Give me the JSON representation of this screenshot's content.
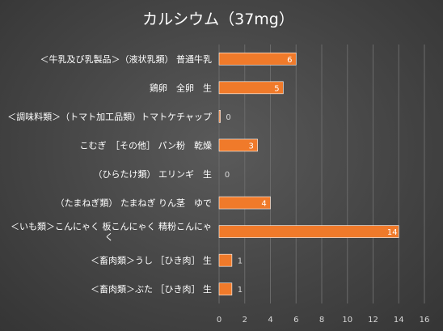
{
  "chart_data": {
    "type": "bar",
    "orientation": "horizontal",
    "title": "カルシウム（37mg）",
    "categories": [
      "＜牛乳及び乳製品＞（液状乳類） 普通牛乳",
      "鶏卵　全卵　生",
      "＜調味料類＞（トマト加工品類）トマトケチャップ",
      "こむぎ　［その他］ パン粉　乾燥",
      "（ひらたけ類） エリンギ　生",
      "（たまねぎ類） たまねぎ りん茎　ゆで",
      "＜いも類＞こんにゃく 板こんにゃく 精粉こんにゃく",
      "＜畜肉類＞うし ［ひき肉］ 生",
      "＜畜肉類＞ぶた ［ひき肉］ 生"
    ],
    "category_lines": [
      [
        "＜牛乳及び乳製品＞（液状乳類） 普通牛乳"
      ],
      [
        "鶏卵　全卵　生"
      ],
      [
        "＜調味料類＞（トマト加工品類）トマトケチャップ"
      ],
      [
        "こむぎ　［その他］ パン粉　乾燥"
      ],
      [
        "（ひらたけ類） エリンギ　生"
      ],
      [
        "（たまねぎ類） たまねぎ りん茎　ゆで"
      ],
      [
        "＜いも類＞こんにゃく 板こんにゃく 精粉こんにゃ",
        "く"
      ],
      [
        "＜畜肉類＞うし ［ひき肉］ 生"
      ],
      [
        "＜畜肉類＞ぶた ［ひき肉］ 生"
      ]
    ],
    "values": [
      6,
      5,
      0.1,
      3,
      0,
      4,
      14,
      1,
      1
    ],
    "data_labels": [
      "6",
      "5",
      "0",
      "3",
      "0",
      "4",
      "14",
      "1",
      "1"
    ],
    "xlim": [
      0,
      16
    ],
    "xticks": [
      "0",
      "2",
      "4",
      "6",
      "8",
      "10",
      "12",
      "14",
      "16"
    ],
    "grid": true,
    "colors": {
      "bar": "#f07a2a",
      "background": "#454545",
      "label_inside": "#ffffff",
      "label_outside": "#d9d9d9"
    }
  }
}
